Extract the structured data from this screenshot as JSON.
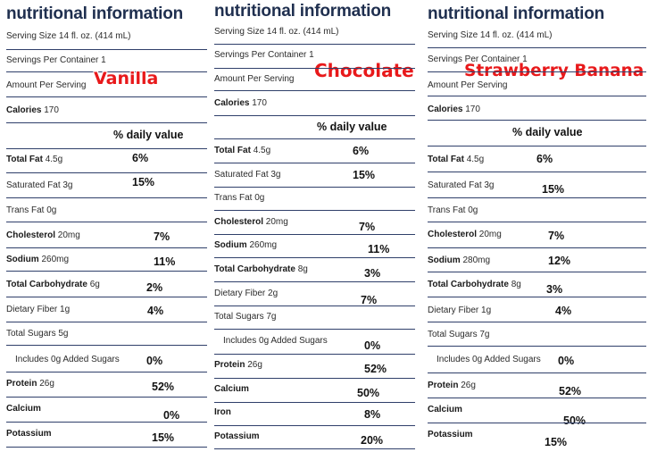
{
  "panels": [
    {
      "flavor": "Vanilla",
      "title": "nutritional information",
      "serving_size": "Serving Size 14 fl. oz. (414 mL)",
      "servings": "Servings Per Container 1",
      "amount": "Amount Per Serving",
      "calories": {
        "name": "Calories",
        "value": "170"
      },
      "dv_header": "% daily value",
      "nutrients": [
        {
          "name": "Total Fat",
          "amount": "4.5g",
          "bold": true,
          "pct": "6%"
        },
        {
          "name": "Saturated Fat",
          "amount": "3g",
          "bold": false,
          "pct": "15%"
        },
        {
          "name": "Trans Fat",
          "amount": "0g",
          "bold": false,
          "pct": ""
        },
        {
          "name": "Cholesterol",
          "amount": "20mg",
          "bold": true,
          "pct": "7%"
        },
        {
          "name": "Sodium",
          "amount": "260mg",
          "bold": true,
          "pct": "11%"
        },
        {
          "name": "Total Carbohydrate",
          "amount": "6g",
          "bold": true,
          "pct": "2%"
        },
        {
          "name": "Dietary Fiber",
          "amount": "1g",
          "bold": false,
          "pct": "4%"
        },
        {
          "name": "Total Sugars",
          "amount": "5g",
          "bold": false,
          "pct": ""
        },
        {
          "name": "Includes 0g Added Sugars",
          "amount": "",
          "bold": false,
          "pct": "0%"
        },
        {
          "name": "Protein",
          "amount": "26g",
          "bold": true,
          "pct": "52%"
        },
        {
          "name": "Calcium",
          "amount": "",
          "bold": true,
          "pct": "0%"
        },
        {
          "name": "Potassium",
          "amount": "",
          "bold": true,
          "pct": "15%"
        }
      ]
    },
    {
      "flavor": "Chocolate",
      "title": "nutritional information",
      "serving_size": "Serving Size 14 fl. oz. (414 mL)",
      "servings": "Servings Per Container 1",
      "amount": "Amount Per Serving",
      "calories": {
        "name": "Calories",
        "value": "170"
      },
      "dv_header": "% daily value",
      "nutrients": [
        {
          "name": "Total Fat",
          "amount": "4.5g",
          "bold": true,
          "pct": "6%"
        },
        {
          "name": "Saturated Fat",
          "amount": "3g",
          "bold": false,
          "pct": "15%"
        },
        {
          "name": "Trans Fat",
          "amount": "0g",
          "bold": false,
          "pct": ""
        },
        {
          "name": "Cholesterol",
          "amount": "20mg",
          "bold": true,
          "pct": "7%"
        },
        {
          "name": "Sodium",
          "amount": "260mg",
          "bold": true,
          "pct": "11%"
        },
        {
          "name": "Total Carbohydrate",
          "amount": "8g",
          "bold": true,
          "pct": "3%"
        },
        {
          "name": "Dietary Fiber",
          "amount": "2g",
          "bold": false,
          "pct": "7%"
        },
        {
          "name": "Total Sugars",
          "amount": "7g",
          "bold": false,
          "pct": ""
        },
        {
          "name": "Includes 0g Added Sugars",
          "amount": "",
          "bold": false,
          "pct": "0%"
        },
        {
          "name": "Protein",
          "amount": "26g",
          "bold": true,
          "pct": "52%"
        },
        {
          "name": "Calcium",
          "amount": "",
          "bold": true,
          "pct": "50%"
        },
        {
          "name": "Iron",
          "amount": "",
          "bold": true,
          "pct": "8%"
        },
        {
          "name": "Potassium",
          "amount": "",
          "bold": true,
          "pct": "20%"
        }
      ]
    },
    {
      "flavor": "Strawberry Banana",
      "title": "nutritional information",
      "serving_size": "Serving Size 14 fl. oz. (414 mL)",
      "servings": "Servings Per Container 1",
      "amount": "Amount Per Serving",
      "calories": {
        "name": "Calories",
        "value": "170"
      },
      "dv_header": "% daily value",
      "nutrients": [
        {
          "name": "Total Fat",
          "amount": "4.5g",
          "bold": true,
          "pct": "6%"
        },
        {
          "name": "Saturated Fat",
          "amount": "3g",
          "bold": false,
          "pct": "15%"
        },
        {
          "name": "Trans Fat",
          "amount": "0g",
          "bold": false,
          "pct": ""
        },
        {
          "name": "Cholesterol",
          "amount": "20mg",
          "bold": true,
          "pct": "7%"
        },
        {
          "name": "Sodium",
          "amount": "280mg",
          "bold": true,
          "pct": "12%"
        },
        {
          "name": "Total Carbohydrate",
          "amount": "8g",
          "bold": true,
          "pct": "3%"
        },
        {
          "name": "Dietary Fiber",
          "amount": "1g",
          "bold": false,
          "pct": "4%"
        },
        {
          "name": "Total Sugars",
          "amount": "7g",
          "bold": false,
          "pct": ""
        },
        {
          "name": "Includes 0g Added Sugars",
          "amount": "",
          "bold": false,
          "pct": "0%"
        },
        {
          "name": "Protein",
          "amount": "26g",
          "bold": true,
          "pct": "52%"
        },
        {
          "name": "Calcium",
          "amount": "",
          "bold": true,
          "pct": "50%"
        },
        {
          "name": "Potassium",
          "amount": "",
          "bold": true,
          "pct": "15%"
        }
      ]
    }
  ]
}
